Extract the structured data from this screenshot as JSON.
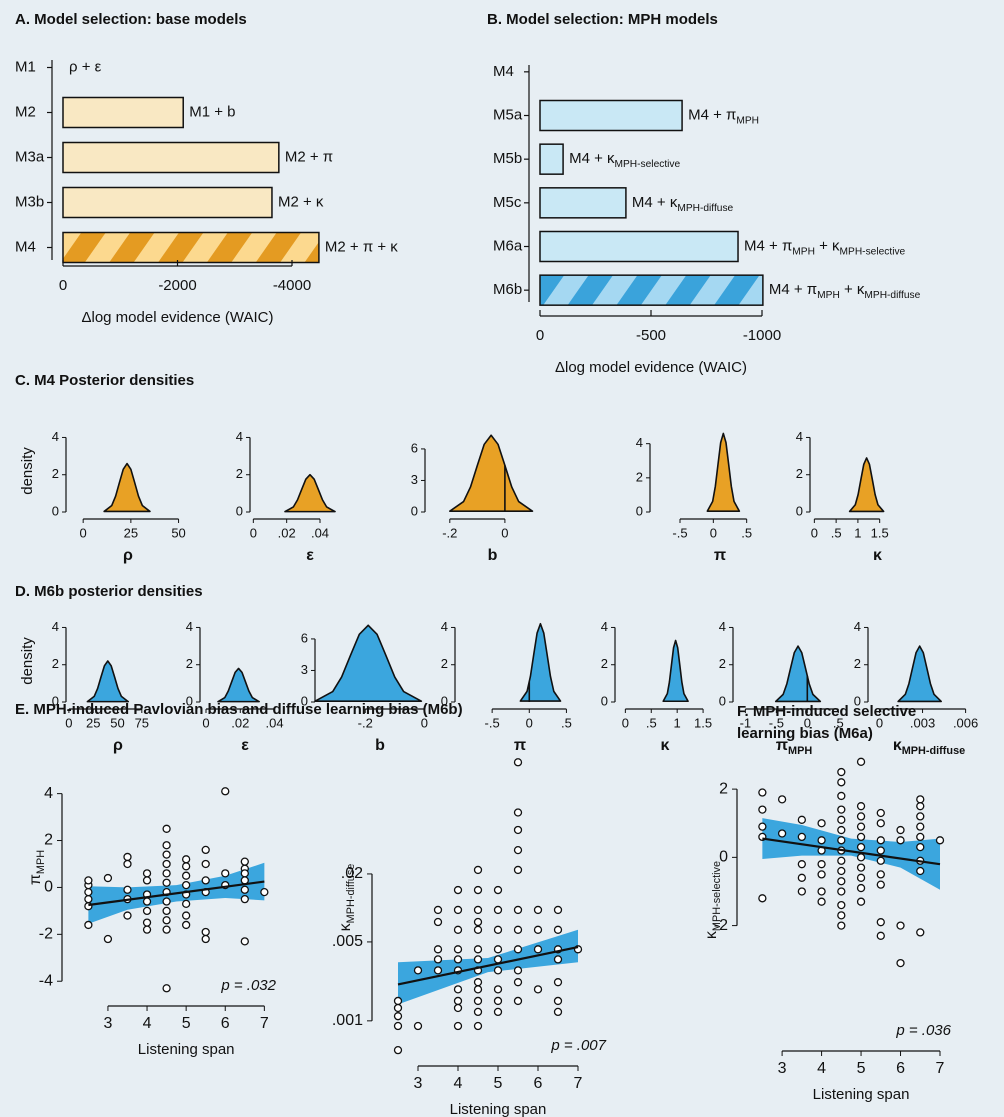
{
  "chart_data": [
    {
      "type": "bar",
      "orientation": "horizontal",
      "title": "A. Model selection: base models",
      "categories": [
        "M1",
        "M2",
        "M3a",
        "M3b",
        "M4"
      ],
      "values": [
        0,
        -2100,
        -3770,
        -3650,
        -4470
      ],
      "annotations": [
        [
          "ρ + ε"
        ],
        [
          "M1 + b"
        ],
        [
          "M2 + π"
        ],
        [
          "M2 + κ"
        ],
        [
          "M2 + π + κ"
        ]
      ],
      "hatched": [
        false,
        false,
        false,
        false,
        true
      ],
      "color": "#f9e8c3",
      "hatch_colors": [
        "#e49b22",
        "#fcd98f"
      ],
      "xlim": [
        0,
        -4000
      ],
      "xticks": [
        0,
        -2000,
        -4000
      ],
      "xlabel": "Δlog model evidence (WAIC)"
    },
    {
      "type": "bar",
      "orientation": "horizontal",
      "title": "B. Model selection: MPH models",
      "categories": [
        "M4",
        "M5a",
        "M5b",
        "M5c",
        "M6a",
        "M6b"
      ],
      "values": [
        0,
        -640,
        -104,
        -387,
        -892,
        -1004
      ],
      "annotations": [
        null,
        [
          "M4 + π",
          "MPH"
        ],
        [
          "M4 + κ",
          "MPH-selective"
        ],
        [
          "M4 + κ",
          "MPH-diffuse"
        ],
        [
          "M4 + π",
          "MPH",
          " + κ",
          "MPH-selective"
        ],
        [
          "M4 + π",
          "MPH",
          " + κ",
          "MPH-diffuse"
        ]
      ],
      "hatched": [
        false,
        false,
        false,
        false,
        false,
        true
      ],
      "color": "#c9e8f5",
      "hatch_colors": [
        "#3aa3db",
        "#a5d8f2"
      ],
      "xlim": [
        0,
        -1000
      ],
      "xticks": [
        0,
        -500,
        -1000
      ],
      "xlabel": "Δlog model evidence (WAIC)"
    },
    {
      "type": "density",
      "title": "C. M4 Posterior densities",
      "ylabel": "density",
      "xlabel": [
        "ρ"
      ],
      "color": "#e8a125",
      "x": [
        11,
        15,
        17,
        19,
        21,
        23,
        25,
        27,
        29,
        31,
        35
      ],
      "values": [
        0.03,
        0.35,
        0.85,
        1.58,
        2.29,
        2.6,
        2.29,
        1.58,
        0.85,
        0.35,
        0.03
      ],
      "xlim": [
        -9,
        56
      ],
      "xticks": [
        0,
        25,
        50
      ],
      "ylim": [
        0,
        4.4
      ],
      "yticks": [
        0,
        2,
        4
      ]
    },
    {
      "type": "density",
      "xlabel": [
        "ε"
      ],
      "color": "#e8a125",
      "x": [
        0.019,
        0.024,
        0.0265,
        0.029,
        0.0315,
        0.034,
        0.0365,
        0.039,
        0.0415,
        0.044,
        0.049
      ],
      "values": [
        0.02,
        0.27,
        0.65,
        1.21,
        1.76,
        2,
        1.76,
        1.21,
        0.65,
        0.27,
        0.02
      ],
      "xlim": [
        -0.002,
        0.07
      ],
      "xticks": [
        0,
        {
          "value": 0.02,
          "label": ".02"
        },
        {
          "value": 0.04,
          "label": ".04"
        }
      ],
      "ylim": [
        0,
        4.4
      ],
      "yticks": [
        0,
        2,
        4
      ]
    },
    {
      "type": "density",
      "xlabel": [
        "b"
      ],
      "color": "#e8a125",
      "zero_line": true,
      "x": [
        -0.2,
        -0.15,
        -0.125,
        -0.1,
        -0.075,
        -0.05,
        -0.025,
        0,
        0.025,
        0.05,
        0.1
      ],
      "values": [
        0.08,
        0.99,
        2.37,
        4.43,
        6.44,
        7.3,
        6.44,
        4.43,
        2.37,
        0.99,
        0.08
      ],
      "xlim": [
        -0.29,
        0.2
      ],
      "xticks": [
        {
          "value": -0.2,
          "label": "-.2"
        },
        0
      ],
      "ylim": [
        0,
        7.8
      ],
      "yticks": [
        0,
        3,
        6
      ]
    },
    {
      "type": "density",
      "xlabel": [
        "π"
      ],
      "color": "#e8a125",
      "x": [
        -0.09,
        -0.01,
        0.03,
        0.07,
        0.11,
        0.15,
        0.19,
        0.23,
        0.27,
        0.31,
        0.39
      ],
      "values": [
        0.05,
        0.62,
        1.5,
        2.79,
        4.06,
        4.6,
        4.06,
        2.79,
        1.5,
        0.62,
        0.05
      ],
      "xlim": [
        -0.95,
        1.15
      ],
      "xticks": [
        {
          "value": -0.5,
          "label": "-.5"
        },
        0,
        {
          "value": 0.5,
          "label": ".5"
        }
      ],
      "ylim": [
        0,
        4.8
      ],
      "yticks": [
        0,
        2,
        4
      ]
    },
    {
      "type": "density",
      "xlabel": [
        "κ"
      ],
      "color": "#e8a125",
      "x": [
        0.81,
        0.94,
        1.005,
        1.07,
        1.135,
        1.2,
        1.265,
        1.33,
        1.395,
        1.46,
        1.59
      ],
      "values": [
        0.03,
        0.39,
        0.94,
        1.76,
        2.56,
        2.9,
        2.56,
        1.76,
        0.94,
        0.39,
        0.03
      ],
      "xlim": [
        -0.1,
        3.0
      ],
      "xticks": [
        0,
        {
          "value": 0.5,
          "label": ".5"
        },
        1,
        1.5
      ],
      "ylim": [
        0,
        4.4
      ],
      "yticks": [
        0,
        2,
        4
      ]
    },
    {
      "type": "density",
      "title": "D. M6b posterior densities",
      "ylabel": "density",
      "xlabel": [
        "ρ"
      ],
      "color": "#3ba6de",
      "x": [
        19,
        26,
        29.5,
        33,
        36.5,
        40,
        43.5,
        47,
        50.5,
        54,
        61
      ],
      "values": [
        0.02,
        0.3,
        0.72,
        1.34,
        1.94,
        2.2,
        1.94,
        1.34,
        0.72,
        0.3,
        0.02
      ],
      "xlim": [
        -3,
        104
      ],
      "xticks": [
        0,
        25,
        50,
        75
      ],
      "ylim": [
        0,
        4.4
      ],
      "yticks": [
        0,
        2,
        4
      ]
    },
    {
      "type": "density",
      "xlabel": [
        "ε"
      ],
      "color": "#3ba6de",
      "x": [
        0.007,
        0.011,
        0.013,
        0.015,
        0.017,
        0.019,
        0.021,
        0.023,
        0.025,
        0.027,
        0.031
      ],
      "values": [
        0.02,
        0.24,
        0.59,
        1.09,
        1.59,
        1.8,
        1.59,
        1.09,
        0.59,
        0.24,
        0.02
      ],
      "xlim": [
        -0.0035,
        0.049
      ],
      "xticks": [
        0,
        {
          "value": 0.02,
          "label": ".02"
        },
        {
          "value": 0.04,
          "label": ".04"
        }
      ],
      "ylim": [
        0,
        4.4
      ],
      "yticks": [
        0,
        2,
        4
      ]
    },
    {
      "type": "density",
      "xlabel": [
        "b"
      ],
      "color": "#3ba6de",
      "x": [
        -0.37,
        -0.31,
        -0.28,
        -0.25,
        -0.22,
        -0.19,
        -0.16,
        -0.13,
        -0.1,
        -0.07,
        -0.01
      ],
      "values": [
        0.08,
        0.99,
        2.37,
        4.43,
        6.44,
        7.3,
        6.44,
        4.43,
        2.37,
        0.99,
        0.08
      ],
      "xlim": [
        -0.37,
        0.07
      ],
      "xticks": [
        {
          "value": -0.2,
          "label": "-.2"
        },
        0
      ],
      "ylim": [
        0,
        7.8
      ],
      "yticks": [
        0,
        3,
        6
      ]
    },
    {
      "type": "density",
      "xlabel": [
        "π"
      ],
      "color": "#3ba6de",
      "zero_line": true,
      "x": [
        -0.12,
        -0.03,
        0.015,
        0.06,
        0.105,
        0.15,
        0.195,
        0.24,
        0.285,
        0.33,
        0.42
      ],
      "values": [
        0.05,
        0.57,
        1.37,
        2.55,
        3.7,
        4.2,
        3.7,
        2.55,
        1.37,
        0.57,
        0.05
      ],
      "xlim": [
        -1.0,
        0.75
      ],
      "xticks": [
        {
          "value": -0.5,
          "label": "-.5"
        },
        0,
        {
          "value": 0.5,
          "label": ".5"
        }
      ],
      "ylim": [
        0,
        4.4
      ],
      "yticks": [
        0,
        2,
        4
      ]
    },
    {
      "type": "density",
      "xlabel": [
        "κ"
      ],
      "color": "#3ba6de",
      "x": [
        0.73,
        0.81,
        0.85,
        0.89,
        0.93,
        0.97,
        1.01,
        1.05,
        1.09,
        1.13,
        1.21
      ],
      "values": [
        0.04,
        0.45,
        1.07,
        2,
        2.91,
        3.3,
        2.91,
        2,
        1.07,
        0.45,
        0.04
      ],
      "xlim": [
        -0.2,
        1.73
      ],
      "xticks": [
        0,
        {
          "value": 0.5,
          "label": ".5"
        },
        1,
        1.5
      ],
      "ylim": [
        0,
        4.4
      ],
      "yticks": [
        0,
        2,
        4
      ]
    },
    {
      "type": "density",
      "xlabel": [
        "π",
        "MPH"
      ],
      "color": "#3ba6de",
      "zero_line": true,
      "x": [
        -0.51,
        -0.39,
        -0.33,
        -0.27,
        -0.21,
        -0.15,
        -0.09,
        -0.03,
        0.03,
        0.09,
        0.21
      ],
      "values": [
        0.03,
        0.41,
        0.98,
        1.82,
        2.65,
        3,
        2.65,
        1.82,
        0.98,
        0.41,
        0.03
      ],
      "xlim": [
        -1.2,
        0.77
      ],
      "xticks": [
        -1,
        {
          "value": -0.5,
          "label": "-.5"
        },
        0,
        {
          "value": 0.5,
          "label": ".5"
        }
      ],
      "ylim": [
        0,
        4.4
      ],
      "yticks": [
        0,
        2,
        4
      ]
    },
    {
      "type": "density",
      "xlabel": [
        "κ",
        "MPH-diffuse"
      ],
      "color": "#3ba6de",
      "x": [
        0.0013,
        0.0018,
        0.00205,
        0.0023,
        0.00255,
        0.0028,
        0.00305,
        0.0033,
        0.00355,
        0.0038,
        0.0043
      ],
      "values": [
        0.03,
        0.41,
        0.98,
        1.82,
        2.65,
        3,
        2.65,
        1.82,
        0.98,
        0.41,
        0.03
      ],
      "xlim": [
        -0.0008,
        0.0077
      ],
      "xticks": [
        0,
        {
          "value": 0.003,
          "label": ".003"
        },
        {
          "value": 0.006,
          "label": ".006"
        }
      ],
      "ylim": [
        0,
        4.4
      ],
      "yticks": [
        0,
        2,
        4
      ]
    },
    {
      "type": "scatter",
      "title": "E. MPH-induced Pavlovian bias and diffuse learning bias (M6b)",
      "x": [
        2.5,
        2.5,
        2.5,
        2.5,
        2.5,
        2.5,
        3,
        3,
        3.5,
        3.5,
        3.5,
        3.5,
        3.5,
        4,
        4,
        4,
        4,
        4,
        4,
        4,
        4.5,
        4.5,
        4.5,
        4.5,
        4.5,
        4.5,
        4.5,
        4.5,
        4.5,
        4.5,
        4.5,
        4.5,
        5,
        5,
        5,
        5,
        5,
        5,
        5,
        5,
        5.5,
        5.5,
        5.5,
        5.5,
        5.5,
        5.5,
        6,
        6,
        6,
        6.5,
        6.5,
        6.5,
        6.5,
        6.5,
        6.5,
        6.5,
        7
      ],
      "values": [
        -1.6,
        -0.8,
        -0.5,
        -0.2,
        0.1,
        0.3,
        0.4,
        -2.2,
        1.3,
        1.0,
        -0.1,
        -0.5,
        -1.2,
        0.6,
        0.3,
        -0.3,
        -0.6,
        -1.0,
        -1.5,
        -1.8,
        2.5,
        1.8,
        1.4,
        1.0,
        0.6,
        0.2,
        -0.2,
        -0.6,
        -1.0,
        -1.4,
        -1.8,
        -4.3,
        1.2,
        0.9,
        0.5,
        0.1,
        -0.3,
        -0.7,
        -1.2,
        -1.6,
        1.6,
        1.0,
        0.3,
        -0.2,
        -1.9,
        -2.2,
        4.1,
        0.6,
        0.1,
        1.1,
        0.8,
        0.6,
        0.3,
        -0.1,
        -0.5,
        -2.3,
        -0.2
      ],
      "fit": {
        "x": [
          2.5,
          7
        ],
        "values": [
          -0.75,
          0.25
        ]
      },
      "band": {
        "x": [
          2.5,
          3.5,
          4.75,
          6,
          7
        ],
        "lower": [
          -1.55,
          -0.95,
          -0.6,
          -0.45,
          -0.55
        ],
        "upper": [
          0.05,
          0.0,
          0.1,
          0.5,
          1.05
        ]
      },
      "band_color": "#3ba6de",
      "xlim": [
        2.03,
        7.4
      ],
      "ylim": [
        -4.8,
        6.5
      ],
      "xticks": [
        3,
        4,
        5,
        6,
        7
      ],
      "yticks": [
        -4,
        -2,
        0,
        2,
        4
      ],
      "xlabel": "Listening span",
      "ylabel": [
        "π",
        "MPH"
      ],
      "annotation": "p = .032"
    },
    {
      "type": "scatter",
      "ylog": true,
      "x": [
        2.5,
        2.5,
        2.5,
        2.5,
        2.5,
        3,
        3,
        3.5,
        3.5,
        3.5,
        3.5,
        3.5,
        4,
        4,
        4,
        4,
        4,
        4,
        4,
        4,
        4,
        4,
        4.5,
        4.5,
        4.5,
        4.5,
        4.5,
        4.5,
        4.5,
        4.5,
        4.5,
        4.5,
        4.5,
        4.5,
        4.5,
        5,
        5,
        5,
        5,
        5,
        5,
        5,
        5,
        5,
        5.5,
        5.5,
        5.5,
        5.5,
        5.5,
        5.5,
        5.5,
        5.5,
        5.5,
        5.5,
        5.5,
        6,
        6,
        6,
        6,
        6.5,
        6.5,
        6.5,
        6.5,
        6.5,
        6.5,
        6.5,
        7
      ],
      "values": [
        0.00055,
        0.0009,
        0.0011,
        0.0013,
        0.0015,
        0.0009,
        0.0028,
        0.0096,
        0.0075,
        0.0043,
        0.0035,
        0.0028,
        0.0144,
        0.0096,
        0.0064,
        0.0043,
        0.0035,
        0.0028,
        0.0019,
        0.0015,
        0.0013,
        0.0009,
        0.0217,
        0.0144,
        0.0096,
        0.0075,
        0.0064,
        0.0043,
        0.0035,
        0.0028,
        0.0022,
        0.0019,
        0.0015,
        0.0012,
        0.0009,
        0.0144,
        0.0096,
        0.0064,
        0.0043,
        0.0035,
        0.0028,
        0.0019,
        0.0015,
        0.0012,
        0.195,
        0.07,
        0.049,
        0.0325,
        0.0217,
        0.0096,
        0.0064,
        0.0043,
        0.0028,
        0.0022,
        0.0015,
        0.0096,
        0.0064,
        0.0043,
        0.0019,
        0.0096,
        0.0064,
        0.0043,
        0.0035,
        0.0022,
        0.0015,
        0.0012,
        0.0043
      ],
      "fit": {
        "x": [
          2.5,
          7
        ],
        "values": [
          0.0021,
          0.0045
        ]
      },
      "band": {
        "x": [
          2.5,
          4.75,
          7
        ],
        "lower": [
          0.0014,
          0.0027,
          0.0033
        ],
        "upper": [
          0.0033,
          0.0036,
          0.0064
        ]
      },
      "band_color": "#3ba6de",
      "xlim": [
        2.05,
        7.8
      ],
      "ylim": [
        0.00045,
        0.34
      ],
      "xticks": [
        3,
        4,
        5,
        6,
        7
      ],
      "yticks": [
        {
          "value": 0.001,
          "label": ".001"
        },
        {
          "value": 0.005,
          "label": ".005"
        },
        {
          "value": 0.02,
          "label": ".02"
        }
      ],
      "xlabel": "Listening span",
      "ylabel": [
        "κ",
        "MPH-diffuse"
      ],
      "annotation": "p = .007"
    },
    {
      "type": "scatter",
      "title": [
        "F. MPH-induced selective",
        "learning bias (M6a)"
      ],
      "x": [
        2.5,
        2.5,
        2.5,
        2.5,
        2.5,
        3,
        3,
        3.5,
        3.5,
        3.5,
        3.5,
        3.5,
        4,
        4,
        4,
        4,
        4,
        4,
        4,
        4.5,
        4.5,
        4.5,
        4.5,
        4.5,
        4.5,
        4.5,
        4.5,
        4.5,
        4.5,
        4.5,
        4.5,
        4.5,
        4.5,
        4.5,
        5,
        5,
        5,
        5,
        5,
        5,
        5,
        5,
        5,
        5,
        5,
        5.5,
        5.5,
        5.5,
        5.5,
        5.5,
        5.5,
        5.5,
        5.5,
        5.5,
        6,
        6,
        6,
        6,
        6.5,
        6.5,
        6.5,
        6.5,
        6.5,
        6.5,
        6.5,
        6.5,
        6.5,
        7
      ],
      "values": [
        1.9,
        1.4,
        0.9,
        0.6,
        -1.2,
        1.7,
        0.7,
        1.1,
        0.6,
        -0.2,
        -0.6,
        -1.0,
        1.0,
        0.5,
        0.2,
        -0.2,
        -0.5,
        -1.0,
        -1.3,
        2.5,
        2.2,
        1.8,
        1.4,
        1.1,
        0.8,
        0.5,
        0.2,
        -0.1,
        -0.4,
        -0.7,
        -1.0,
        -1.4,
        -1.7,
        -2.0,
        2.8,
        1.5,
        1.2,
        0.9,
        0.6,
        0.3,
        0,
        -0.3,
        -0.6,
        -0.9,
        -1.3,
        1.3,
        1.0,
        0.5,
        0.2,
        -0.1,
        -0.5,
        -0.8,
        -1.9,
        -2.3,
        0.8,
        0.5,
        -2.0,
        -3.1,
        1.7,
        1.5,
        1.2,
        0.9,
        0.6,
        0.3,
        -0.1,
        -0.4,
        -2.2,
        0.5
      ],
      "fit": {
        "x": [
          2.5,
          7
        ],
        "values": [
          0.55,
          -0.2
        ]
      },
      "band": {
        "x": [
          2.5,
          3.5,
          4.75,
          6,
          7
        ],
        "lower": [
          -0.05,
          0.05,
          0.05,
          -0.3,
          -0.95
        ],
        "upper": [
          1.15,
          0.95,
          0.55,
          0.45,
          0.55
        ]
      },
      "band_color": "#3ba6de",
      "xlim": [
        2.06,
        7.38
      ],
      "ylim": [
        -5.5,
        3.0
      ],
      "xticks": [
        3,
        4,
        5,
        6,
        7
      ],
      "yticks": [
        -2,
        0,
        2
      ],
      "xlabel": "Listening span",
      "ylabel": [
        "κ",
        "MPH-selective"
      ],
      "annotation": "p = .036"
    }
  ]
}
